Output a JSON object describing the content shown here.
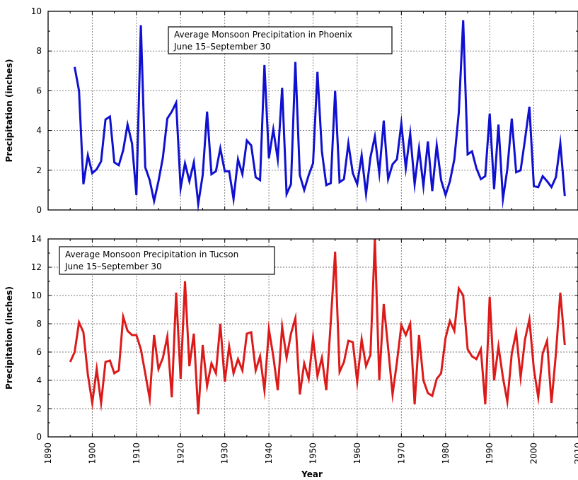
{
  "xlabel": "Year",
  "chart_data": [
    {
      "type": "line",
      "title": "Average Monsoon Precipitation in Phoenix",
      "subtitle": "June 15–September 30",
      "ylabel": "Precipitation (inches)",
      "xlim": [
        1890,
        2010
      ],
      "ylim": [
        0,
        10
      ],
      "yticks": [
        0,
        2,
        4,
        6,
        8,
        10
      ],
      "xticks": [
        1890,
        1900,
        1910,
        1920,
        1930,
        1940,
        1950,
        1960,
        1970,
        1980,
        1990,
        2000,
        2010
      ],
      "grid": true,
      "color": "#1010d0",
      "x": [
        1896,
        1897,
        1898,
        1899,
        1900,
        1901,
        1902,
        1903,
        1904,
        1905,
        1906,
        1907,
        1908,
        1909,
        1910,
        1911,
        1912,
        1913,
        1914,
        1915,
        1916,
        1917,
        1918,
        1919,
        1920,
        1921,
        1922,
        1923,
        1924,
        1925,
        1926,
        1927,
        1928,
        1929,
        1930,
        1931,
        1932,
        1933,
        1934,
        1935,
        1936,
        1937,
        1938,
        1939,
        1940,
        1941,
        1942,
        1943,
        1944,
        1945,
        1946,
        1947,
        1948,
        1949,
        1950,
        1951,
        1952,
        1953,
        1954,
        1955,
        1956,
        1957,
        1958,
        1959,
        1960,
        1961,
        1962,
        1963,
        1964,
        1965,
        1966,
        1967,
        1968,
        1969,
        1970,
        1971,
        1972,
        1973,
        1974,
        1975,
        1976,
        1977,
        1978,
        1979,
        1980,
        1981,
        1982,
        1983,
        1984,
        1985,
        1986,
        1987,
        1988,
        1989,
        1990,
        1991,
        1992,
        1993,
        1994,
        1995,
        1996,
        1997,
        1998,
        1999,
        2000,
        2001,
        2002,
        2003,
        2004,
        2005,
        2006,
        2007
      ],
      "values": [
        7.2,
        6.0,
        1.3,
        2.75,
        1.85,
        2.05,
        2.45,
        4.55,
        4.7,
        2.4,
        2.25,
        3.0,
        4.3,
        3.35,
        0.75,
        9.3,
        2.15,
        1.5,
        0.45,
        1.45,
        2.65,
        4.6,
        4.95,
        5.4,
        1.1,
        2.35,
        1.45,
        2.4,
        0.3,
        1.75,
        4.95,
        1.8,
        1.95,
        3.1,
        1.95,
        1.95,
        0.55,
        2.55,
        1.8,
        3.5,
        3.25,
        1.65,
        1.5,
        7.3,
        2.6,
        4.05,
        2.55,
        6.15,
        0.8,
        1.3,
        7.45,
        1.75,
        1.0,
        1.75,
        2.35,
        6.95,
        2.95,
        1.25,
        1.35,
        6.0,
        1.4,
        1.55,
        3.35,
        1.85,
        1.3,
        2.75,
        0.8,
        2.65,
        3.7,
        1.85,
        4.5,
        1.55,
        2.3,
        2.55,
        4.35,
        2.1,
        3.85,
        1.3,
        3.1,
        1.2,
        3.45,
        0.95,
        3.25,
        1.5,
        0.75,
        1.45,
        2.55,
        4.9,
        9.55,
        2.8,
        2.95,
        2.1,
        1.55,
        1.7,
        4.85,
        1.05,
        4.3,
        0.55,
        2.05,
        4.6,
        1.9,
        2.0,
        3.55,
        5.2,
        1.2,
        1.15,
        1.7,
        1.45,
        1.15,
        1.65,
        3.35,
        0.7
      ]
    },
    {
      "type": "line",
      "title": "Average Monsoon Precipitation in Tucson",
      "subtitle": "June 15–September 30",
      "ylabel": "Precipitation (inches)",
      "xlim": [
        1890,
        2010
      ],
      "ylim": [
        0,
        14
      ],
      "yticks": [
        0,
        2,
        4,
        6,
        8,
        10,
        12,
        14
      ],
      "xticks": [
        1890,
        1900,
        1910,
        1920,
        1930,
        1940,
        1950,
        1960,
        1970,
        1980,
        1990,
        2000,
        2010
      ],
      "grid": true,
      "color": "#dd1a1a",
      "x": [
        1895,
        1896,
        1897,
        1898,
        1899,
        1900,
        1901,
        1902,
        1903,
        1904,
        1905,
        1906,
        1907,
        1908,
        1909,
        1910,
        1911,
        1912,
        1913,
        1914,
        1915,
        1916,
        1917,
        1918,
        1919,
        1920,
        1921,
        1922,
        1923,
        1924,
        1925,
        1926,
        1927,
        1928,
        1929,
        1930,
        1931,
        1932,
        1933,
        1934,
        1935,
        1936,
        1937,
        1938,
        1939,
        1940,
        1941,
        1942,
        1943,
        1944,
        1945,
        1946,
        1947,
        1948,
        1949,
        1950,
        1951,
        1952,
        1953,
        1954,
        1955,
        1956,
        1957,
        1958,
        1959,
        1960,
        1961,
        1962,
        1963,
        1964,
        1965,
        1966,
        1967,
        1968,
        1969,
        1970,
        1971,
        1972,
        1973,
        1974,
        1975,
        1976,
        1977,
        1978,
        1979,
        1980,
        1981,
        1982,
        1983,
        1984,
        1985,
        1986,
        1987,
        1988,
        1989,
        1990,
        1991,
        1992,
        1993,
        1994,
        1995,
        1996,
        1997,
        1998,
        1999,
        2000,
        2001,
        2002,
        2003,
        2004,
        2005,
        2006,
        2007
      ],
      "values": [
        5.3,
        6.0,
        8.1,
        7.4,
        4.4,
        2.4,
        4.8,
        2.4,
        5.3,
        5.4,
        4.5,
        4.7,
        8.5,
        7.5,
        7.2,
        7.2,
        6.2,
        4.5,
        2.7,
        7.2,
        4.8,
        5.6,
        7.1,
        2.8,
        10.2,
        4.1,
        11.0,
        5.0,
        7.3,
        1.6,
        6.5,
        3.6,
        5.2,
        4.5,
        8.0,
        3.9,
        6.4,
        4.5,
        5.5,
        4.7,
        7.3,
        7.4,
        4.7,
        5.7,
        3.3,
        7.6,
        5.7,
        3.3,
        7.8,
        5.6,
        7.3,
        8.4,
        3.0,
        5.2,
        4.1,
        7.0,
        4.3,
        5.6,
        3.3,
        8.1,
        13.1,
        4.6,
        5.3,
        6.8,
        6.7,
        3.9,
        6.9,
        5.0,
        5.8,
        14.0,
        4.0,
        9.4,
        6.3,
        3.0,
        5.3,
        7.9,
        7.2,
        8.0,
        2.3,
        7.2,
        4.0,
        3.1,
        2.9,
        4.1,
        4.5,
        7.0,
        8.2,
        7.5,
        10.5,
        10.0,
        6.2,
        5.7,
        5.5,
        6.2,
        2.3,
        9.9,
        4.0,
        6.4,
        4.2,
        2.5,
        5.9,
        7.4,
        4.2,
        6.9,
        8.3,
        4.8,
        2.8,
        5.9,
        6.8,
        2.4,
        5.9,
        10.2,
        6.5
      ]
    }
  ]
}
